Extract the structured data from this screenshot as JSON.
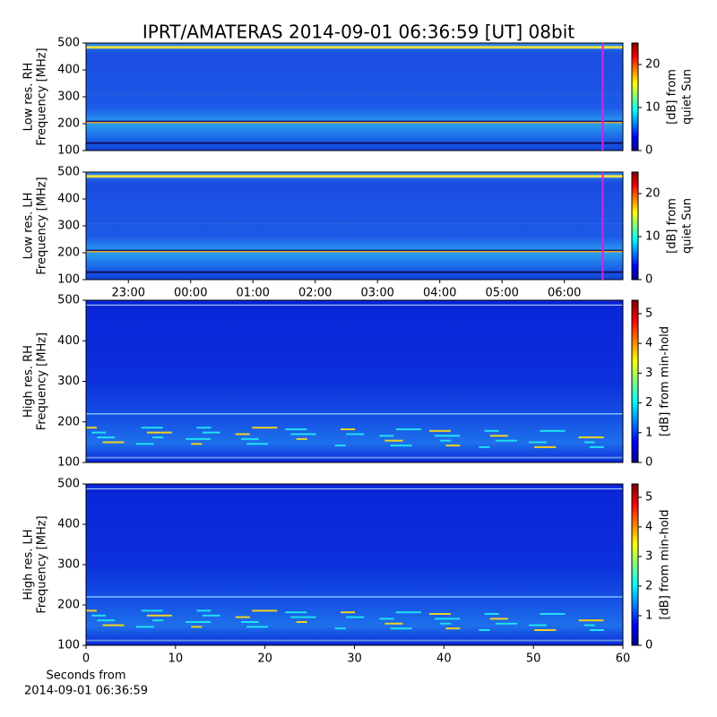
{
  "chart_data": [
    {
      "type": "spectrogram",
      "title": "IPRT/AMATERAS 2014-09-01 06:36:59 [UT]   08bit",
      "ylabel": [
        "Low res. RH",
        "Frequency [MHz]"
      ],
      "ylim": [
        100,
        500
      ],
      "yticks": [
        100,
        200,
        300,
        400,
        500
      ],
      "xlim": [
        -1.68,
        6.94
      ],
      "marker_x": 6.616,
      "marker_color": "#e020e0",
      "colorbar_label": [
        "[dB] from",
        "quiet Sun"
      ],
      "clim": [
        0,
        25
      ],
      "cticks": [
        0,
        10,
        20
      ],
      "colormap": "jet"
    },
    {
      "type": "spectrogram",
      "ylabel": [
        "Low res. LH",
        "Frequency [MHz]"
      ],
      "ylim": [
        100,
        500
      ],
      "yticks": [
        100,
        200,
        300,
        400,
        500
      ],
      "xlim": [
        -1.68,
        6.94
      ],
      "marker_x": 6.616,
      "marker_color": "#e020e0",
      "xticks": [
        {
          "value": -1,
          "label": "23:00"
        },
        {
          "value": 0,
          "label": "00:00"
        },
        {
          "value": 1,
          "label": "01:00"
        },
        {
          "value": 2,
          "label": "02:00"
        },
        {
          "value": 3,
          "label": "03:00"
        },
        {
          "value": 4,
          "label": "04:00"
        },
        {
          "value": 5,
          "label": "05:00"
        },
        {
          "value": 6,
          "label": "06:00"
        }
      ],
      "colorbar_label": [
        "[dB] from",
        "quiet Sun"
      ],
      "clim": [
        0,
        25
      ],
      "cticks": [
        0,
        10,
        20
      ],
      "colormap": "jet"
    },
    {
      "type": "spectrogram",
      "ylabel": [
        "High res. RH",
        "Frequency [MHz]"
      ],
      "ylim": [
        100,
        500
      ],
      "yticks": [
        100,
        200,
        300,
        400,
        500
      ],
      "xlim": [
        0,
        60
      ],
      "colorbar_label": [
        "[dB] from min-hold"
      ],
      "clim": [
        0,
        5.45
      ],
      "cticks": [
        0,
        1,
        2,
        3,
        4,
        5
      ],
      "colormap": "jet"
    },
    {
      "type": "spectrogram",
      "ylabel": [
        "High res. LH",
        "Frequency [MHz]"
      ],
      "ylim": [
        100,
        500
      ],
      "yticks": [
        100,
        200,
        300,
        400,
        500
      ],
      "xlim": [
        0,
        60
      ],
      "xticks": [
        0,
        10,
        20,
        30,
        40,
        50,
        60
      ],
      "xlabel": [
        "Seconds from",
        "2014-09-01 06:36:59"
      ],
      "colorbar_label": [
        "[dB] from min-hold"
      ],
      "clim": [
        0,
        5.45
      ],
      "cticks": [
        0,
        1,
        2,
        3,
        4,
        5
      ],
      "colormap": "jet"
    }
  ]
}
